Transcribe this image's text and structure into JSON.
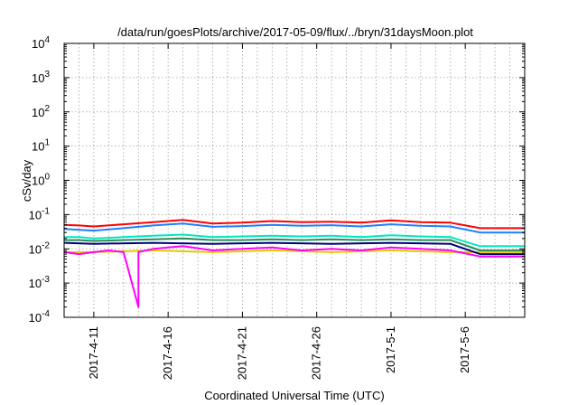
{
  "chart_data": {
    "type": "line",
    "title": "/data/run/goesPlots/archive/2017-05-09/flux/../bryn/31daysMoon.plot",
    "xlabel": "Coordinated Universal Time (UTC)",
    "ylabel": "cSv/day",
    "yscale": "log",
    "ylim": [
      0.0001,
      10000
    ],
    "xlim": [
      "2017-04-09",
      "2017-05-10"
    ],
    "yticks": [
      {
        "base": "10",
        "exp": "-4",
        "value": 0.0001
      },
      {
        "base": "10",
        "exp": "-3",
        "value": 0.001
      },
      {
        "base": "10",
        "exp": "-2",
        "value": 0.01
      },
      {
        "base": "10",
        "exp": "-1",
        "value": 0.1
      },
      {
        "base": "10",
        "exp": "0",
        "value": 1
      },
      {
        "base": "10",
        "exp": "1",
        "value": 10
      },
      {
        "base": "10",
        "exp": "2",
        "value": 100
      },
      {
        "base": "10",
        "exp": "3",
        "value": 1000
      },
      {
        "base": "10",
        "exp": "4",
        "value": 10000
      }
    ],
    "xticks": [
      {
        "label": "2017-4-11",
        "date": "2017-04-11"
      },
      {
        "label": "2017-4-16",
        "date": "2017-04-16"
      },
      {
        "label": "2017-4-21",
        "date": "2017-04-21"
      },
      {
        "label": "2017-4-26",
        "date": "2017-04-26"
      },
      {
        "label": "2017-5-1",
        "date": "2017-05-01"
      },
      {
        "label": "2017-5-6",
        "date": "2017-05-06"
      }
    ],
    "grid": true,
    "legend": "none",
    "series": [
      {
        "color": "#ff0000",
        "points": [
          [
            "2017-04-09",
            0.05
          ],
          [
            "2017-04-10",
            0.048
          ],
          [
            "2017-04-11",
            0.045
          ],
          [
            "2017-04-13",
            0.052
          ],
          [
            "2017-04-15",
            0.06
          ],
          [
            "2017-04-17",
            0.07
          ],
          [
            "2017-04-19",
            0.055
          ],
          [
            "2017-04-21",
            0.058
          ],
          [
            "2017-04-23",
            0.065
          ],
          [
            "2017-04-25",
            0.06
          ],
          [
            "2017-04-27",
            0.062
          ],
          [
            "2017-04-29",
            0.058
          ],
          [
            "2017-05-01",
            0.068
          ],
          [
            "2017-05-03",
            0.06
          ],
          [
            "2017-05-05",
            0.058
          ],
          [
            "2017-05-07",
            0.04
          ],
          [
            "2017-05-10",
            0.04
          ]
        ]
      },
      {
        "color": "#1e7fff",
        "points": [
          [
            "2017-04-09",
            0.038
          ],
          [
            "2017-04-10",
            0.036
          ],
          [
            "2017-04-11",
            0.034
          ],
          [
            "2017-04-13",
            0.04
          ],
          [
            "2017-04-15",
            0.048
          ],
          [
            "2017-04-17",
            0.055
          ],
          [
            "2017-04-19",
            0.044
          ],
          [
            "2017-04-21",
            0.046
          ],
          [
            "2017-04-23",
            0.05
          ],
          [
            "2017-04-25",
            0.047
          ],
          [
            "2017-04-27",
            0.049
          ],
          [
            "2017-04-29",
            0.045
          ],
          [
            "2017-05-01",
            0.052
          ],
          [
            "2017-05-03",
            0.047
          ],
          [
            "2017-05-05",
            0.045
          ],
          [
            "2017-05-07",
            0.03
          ],
          [
            "2017-05-10",
            0.03
          ]
        ]
      },
      {
        "color": "#00e8c0",
        "points": [
          [
            "2017-04-09",
            0.022
          ],
          [
            "2017-04-10",
            0.022
          ],
          [
            "2017-04-11",
            0.02
          ],
          [
            "2017-04-13",
            0.022
          ],
          [
            "2017-04-15",
            0.024
          ],
          [
            "2017-04-17",
            0.026
          ],
          [
            "2017-04-19",
            0.022
          ],
          [
            "2017-04-21",
            0.023
          ],
          [
            "2017-04-23",
            0.024
          ],
          [
            "2017-04-25",
            0.023
          ],
          [
            "2017-04-27",
            0.024
          ],
          [
            "2017-04-29",
            0.022
          ],
          [
            "2017-05-01",
            0.025
          ],
          [
            "2017-05-03",
            0.023
          ],
          [
            "2017-05-05",
            0.022
          ],
          [
            "2017-05-07",
            0.012
          ],
          [
            "2017-05-10",
            0.012
          ]
        ]
      },
      {
        "color": "#2e8b57",
        "points": [
          [
            "2017-04-09",
            0.018
          ],
          [
            "2017-04-10",
            0.018
          ],
          [
            "2017-04-11",
            0.017
          ],
          [
            "2017-04-13",
            0.018
          ],
          [
            "2017-04-15",
            0.019
          ],
          [
            "2017-04-17",
            0.02
          ],
          [
            "2017-04-19",
            0.018
          ],
          [
            "2017-04-21",
            0.018
          ],
          [
            "2017-04-23",
            0.019
          ],
          [
            "2017-04-25",
            0.018
          ],
          [
            "2017-04-27",
            0.019
          ],
          [
            "2017-04-29",
            0.018
          ],
          [
            "2017-05-01",
            0.019
          ],
          [
            "2017-05-03",
            0.018
          ],
          [
            "2017-05-05",
            0.018
          ],
          [
            "2017-05-07",
            0.009
          ],
          [
            "2017-05-10",
            0.009
          ]
        ]
      },
      {
        "color": "#e6c800",
        "points": [
          [
            "2017-04-09",
            0.008
          ],
          [
            "2017-04-11",
            0.008
          ],
          [
            "2017-04-15",
            0.009
          ],
          [
            "2017-04-19",
            0.008
          ],
          [
            "2017-04-23",
            0.009
          ],
          [
            "2017-04-27",
            0.008
          ],
          [
            "2017-05-01",
            0.009
          ],
          [
            "2017-05-05",
            0.008
          ],
          [
            "2017-05-07",
            0.008
          ],
          [
            "2017-05-10",
            0.008
          ]
        ]
      },
      {
        "color": "#000080",
        "points": [
          [
            "2017-04-09",
            0.015
          ],
          [
            "2017-04-11",
            0.014
          ],
          [
            "2017-04-15",
            0.015
          ],
          [
            "2017-04-19",
            0.014
          ],
          [
            "2017-04-23",
            0.015
          ],
          [
            "2017-04-27",
            0.014
          ],
          [
            "2017-05-01",
            0.015
          ],
          [
            "2017-05-05",
            0.014
          ],
          [
            "2017-05-07",
            0.007
          ],
          [
            "2017-05-10",
            0.007
          ]
        ]
      },
      {
        "color": "#ff00ff",
        "points": [
          [
            "2017-04-09",
            0.008
          ],
          [
            "2017-04-10",
            0.007
          ],
          [
            "2017-04-11",
            0.008
          ],
          [
            "2017-04-12",
            0.009
          ],
          [
            "2017-04-13",
            0.008
          ],
          [
            "2017-04-14",
            0.0002
          ],
          [
            "2017-04-14",
            0.008
          ],
          [
            "2017-04-15",
            0.01
          ],
          [
            "2017-04-17",
            0.012
          ],
          [
            "2017-04-19",
            0.009
          ],
          [
            "2017-04-21",
            0.01
          ],
          [
            "2017-04-23",
            0.011
          ],
          [
            "2017-04-25",
            0.009
          ],
          [
            "2017-04-27",
            0.01
          ],
          [
            "2017-04-29",
            0.009
          ],
          [
            "2017-05-01",
            0.011
          ],
          [
            "2017-05-03",
            0.01
          ],
          [
            "2017-05-05",
            0.009
          ],
          [
            "2017-05-07",
            0.006
          ],
          [
            "2017-05-10",
            0.006
          ]
        ]
      }
    ]
  }
}
